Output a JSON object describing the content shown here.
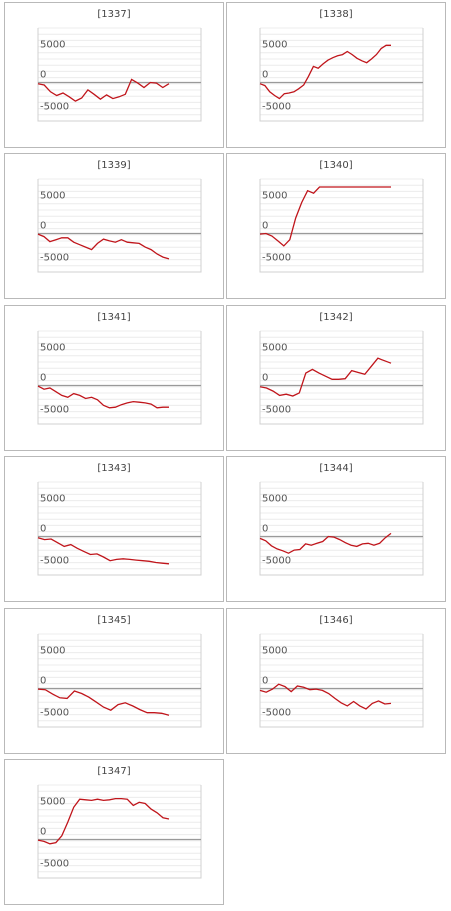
{
  "chart_data": [
    {
      "type": "line",
      "title": "[1337]",
      "ylim": [
        -7500,
        7500
      ],
      "yticks": [
        5000,
        0,
        -5000
      ],
      "grid": true,
      "values": [
        -200,
        -400,
        -1500,
        -2100,
        -1700,
        -2300,
        -3000,
        -2500,
        -1200,
        -1900,
        -2700,
        -2000,
        -2600,
        -2300,
        -1900,
        500,
        -100,
        -800,
        0,
        -100,
        -800,
        -200
      ]
    },
    {
      "type": "line",
      "title": "[1338]",
      "ylim": [
        -7500,
        7500
      ],
      "yticks": [
        5000,
        0,
        -5000
      ],
      "grid": true,
      "values": [
        -200,
        -500,
        -1500,
        -2100,
        -2600,
        -1800,
        -1700,
        -1500,
        -1000,
        -400,
        1000,
        2600,
        2300,
        3000,
        3600,
        4000,
        4300,
        4500,
        5000,
        4500,
        3900,
        3500,
        3200,
        3800,
        4500,
        5500,
        6000,
        6000
      ]
    },
    {
      "type": "line",
      "title": "[1339]",
      "ylim": [
        -7500,
        7500
      ],
      "yticks": [
        5000,
        0,
        -5000
      ],
      "grid": true,
      "values": [
        -100,
        -500,
        -1300,
        -1000,
        -700,
        -700,
        -1400,
        -1800,
        -2200,
        -2600,
        -1600,
        -900,
        -1200,
        -1400,
        -1000,
        -1400,
        -1500,
        -1600,
        -2200,
        -2600,
        -3300,
        -3800,
        -4100
      ]
    },
    {
      "type": "line",
      "title": "[1340]",
      "ylim": [
        -7500,
        7500
      ],
      "yticks": [
        5000,
        0,
        -5000
      ],
      "grid": true,
      "values": [
        -100,
        0,
        -400,
        -1200,
        -2000,
        -1000,
        2500,
        5000,
        6900,
        6500,
        7500,
        7500,
        7500,
        7500,
        7500,
        7500,
        7500,
        7500,
        7500,
        7500,
        7500,
        7500,
        7500
      ]
    },
    {
      "type": "line",
      "title": "[1341]",
      "ylim": [
        -7500,
        7500
      ],
      "yticks": [
        5000,
        0,
        -5000
      ],
      "grid": true,
      "values": [
        -100,
        -600,
        -400,
        -1000,
        -1600,
        -1900,
        -1300,
        -1600,
        -2100,
        -1900,
        -2300,
        -3200,
        -3600,
        -3500,
        -3100,
        -2800,
        -2600,
        -2700,
        -2800,
        -3000,
        -3600,
        -3500,
        -3500
      ]
    },
    {
      "type": "line",
      "title": "[1342]",
      "ylim": [
        -7500,
        7500
      ],
      "yticks": [
        5000,
        0,
        -5000
      ],
      "grid": true,
      "values": [
        -200,
        -400,
        -900,
        -1600,
        -1400,
        -1700,
        -1200,
        2000,
        2600,
        2000,
        1500,
        1000,
        1000,
        1100,
        2400,
        2100,
        1800,
        3100,
        4400,
        4000,
        3600
      ]
    },
    {
      "type": "line",
      "title": "[1343]",
      "ylim": [
        -7500,
        7500
      ],
      "yticks": [
        5000,
        0,
        -5000
      ],
      "grid": true,
      "values": [
        -200,
        -500,
        -400,
        -1000,
        -1600,
        -1300,
        -1900,
        -2400,
        -2900,
        -2800,
        -3300,
        -3900,
        -3700,
        -3600,
        -3700,
        -3800,
        -3900,
        -4000,
        -4200,
        -4300,
        -4400
      ]
    },
    {
      "type": "line",
      "title": "[1344]",
      "ylim": [
        -7500,
        7500
      ],
      "yticks": [
        5000,
        0,
        -5000
      ],
      "grid": true,
      "values": [
        -300,
        -700,
        -1500,
        -2000,
        -2300,
        -2700,
        -2200,
        -2100,
        -1200,
        -1400,
        -1100,
        -800,
        0,
        -100,
        -500,
        -1000,
        -1400,
        -1600,
        -1200,
        -1100,
        -1400,
        -1100,
        -200,
        500
      ]
    },
    {
      "type": "line",
      "title": "[1345]",
      "ylim": [
        -7500,
        7500
      ],
      "yticks": [
        5000,
        0,
        -5000
      ],
      "grid": true,
      "values": [
        -100,
        -200,
        -900,
        -1500,
        -1600,
        -400,
        -800,
        -1400,
        -2200,
        -3000,
        -3500,
        -2600,
        -2300,
        -2800,
        -3400,
        -3900,
        -3900,
        -4000,
        -4300
      ]
    },
    {
      "type": "line",
      "title": "[1346]",
      "ylim": [
        -7500,
        7500
      ],
      "yticks": [
        5000,
        0,
        -5000
      ],
      "grid": true,
      "values": [
        -300,
        -600,
        -100,
        700,
        300,
        -500,
        400,
        200,
        -200,
        -100,
        -300,
        -800,
        -1600,
        -2300,
        -2800,
        -2100,
        -2800,
        -3300,
        -2400,
        -2000,
        -2500,
        -2400
      ]
    },
    {
      "type": "line",
      "title": "[1347]",
      "ylim": [
        -7500,
        7500
      ],
      "yticks": [
        5000,
        0,
        -5000
      ],
      "grid": true,
      "values": [
        -100,
        -300,
        -700,
        -500,
        600,
        2800,
        5200,
        6500,
        6400,
        6300,
        6500,
        6300,
        6400,
        6600,
        6600,
        6500,
        5500,
        6000,
        5800,
        4900,
        4300,
        3500,
        3300
      ]
    }
  ]
}
